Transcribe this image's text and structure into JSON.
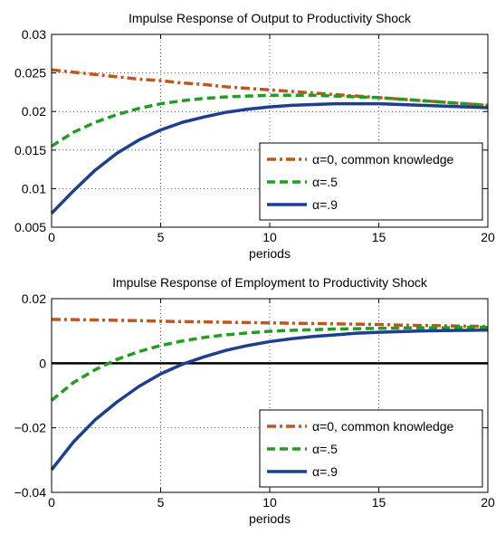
{
  "chart_data": [
    {
      "type": "line",
      "title": "Impulse Response of Output to Productivity Shock",
      "xlabel": "periods",
      "ylabel": "",
      "xlim": [
        0,
        20
      ],
      "ylim": [
        0.005,
        0.03
      ],
      "xticks": [
        0,
        5,
        10,
        15,
        20
      ],
      "xtick_labels": [
        "0",
        "5",
        "10",
        "15",
        "20"
      ],
      "yticks": [
        0.005,
        0.01,
        0.015,
        0.02,
        0.025,
        0.03
      ],
      "ytick_labels": [
        "0.005",
        "0.01",
        "0.015",
        "0.02",
        "0.025",
        "0.03"
      ],
      "grid": true,
      "legend_position": "bottom-right",
      "x": [
        0,
        1,
        2,
        3,
        4,
        5,
        6,
        7,
        8,
        9,
        10,
        11,
        12,
        13,
        14,
        15,
        16,
        17,
        18,
        19,
        20
      ],
      "series": [
        {
          "name": "α=0, common knowledge",
          "color": "#c0561b",
          "style": "dashdot",
          "values": [
            0.0254,
            0.0251,
            0.0248,
            0.0245,
            0.0242,
            0.024,
            0.0237,
            0.0235,
            0.0232,
            0.023,
            0.0228,
            0.0226,
            0.0224,
            0.0222,
            0.022,
            0.0218,
            0.0216,
            0.0214,
            0.0212,
            0.021,
            0.0208
          ]
        },
        {
          "name": "α=.5",
          "color": "#1f9e1f",
          "style": "dashed",
          "values": [
            0.0155,
            0.0173,
            0.0186,
            0.0196,
            0.0204,
            0.021,
            0.0214,
            0.0217,
            0.0219,
            0.022,
            0.0221,
            0.0221,
            0.0221,
            0.022,
            0.0219,
            0.0218,
            0.0216,
            0.0214,
            0.0212,
            0.021,
            0.0208
          ]
        },
        {
          "name": "α=.9",
          "color": "#1c3f8e",
          "style": "solid",
          "values": [
            0.0068,
            0.0097,
            0.0124,
            0.0146,
            0.0163,
            0.0176,
            0.0186,
            0.0193,
            0.0199,
            0.0203,
            0.0206,
            0.0208,
            0.0209,
            0.021,
            0.021,
            0.021,
            0.0209,
            0.0208,
            0.0207,
            0.0206,
            0.0205
          ]
        }
      ]
    },
    {
      "type": "line",
      "title": "Impulse Response of Employment to Productivity Shock",
      "xlabel": "periods",
      "ylabel": "",
      "xlim": [
        0,
        20
      ],
      "ylim": [
        -0.04,
        0.02
      ],
      "xticks": [
        0,
        5,
        10,
        15,
        20
      ],
      "xtick_labels": [
        "0",
        "5",
        "10",
        "15",
        "20"
      ],
      "yticks": [
        -0.04,
        -0.02,
        0,
        0.02
      ],
      "ytick_labels": [
        "−0.04",
        "−0.02",
        "0",
        "0.02"
      ],
      "grid": true,
      "zero_line": true,
      "legend_position": "bottom-right",
      "x": [
        0,
        1,
        2,
        3,
        4,
        5,
        6,
        7,
        8,
        9,
        10,
        11,
        12,
        13,
        14,
        15,
        16,
        17,
        18,
        19,
        20
      ],
      "series": [
        {
          "name": "α=0, common knowledge",
          "color": "#c0561b",
          "style": "dashdot",
          "values": [
            0.0136,
            0.0135,
            0.0134,
            0.0133,
            0.0132,
            0.013,
            0.0129,
            0.0128,
            0.0127,
            0.0126,
            0.0125,
            0.0124,
            0.0123,
            0.0122,
            0.0121,
            0.012,
            0.0118,
            0.0117,
            0.0116,
            0.0115,
            0.0114
          ]
        },
        {
          "name": "α=.5",
          "color": "#1f9e1f",
          "style": "dashed",
          "values": [
            -0.0115,
            -0.006,
            -0.002,
            0.0012,
            0.0036,
            0.0055,
            0.0069,
            0.008,
            0.0088,
            0.0094,
            0.0099,
            0.0102,
            0.0104,
            0.0106,
            0.0107,
            0.0108,
            0.0109,
            0.011,
            0.011,
            0.0111,
            0.0111
          ]
        },
        {
          "name": "α=.9",
          "color": "#1c3f8e",
          "style": "solid",
          "values": [
            -0.033,
            -0.0244,
            -0.0175,
            -0.012,
            -0.0072,
            -0.0033,
            -0.0003,
            0.002,
            0.004,
            0.0055,
            0.0067,
            0.0076,
            0.0083,
            0.0088,
            0.0093,
            0.0096,
            0.0098,
            0.01,
            0.0101,
            0.0102,
            0.0103
          ]
        }
      ]
    }
  ]
}
